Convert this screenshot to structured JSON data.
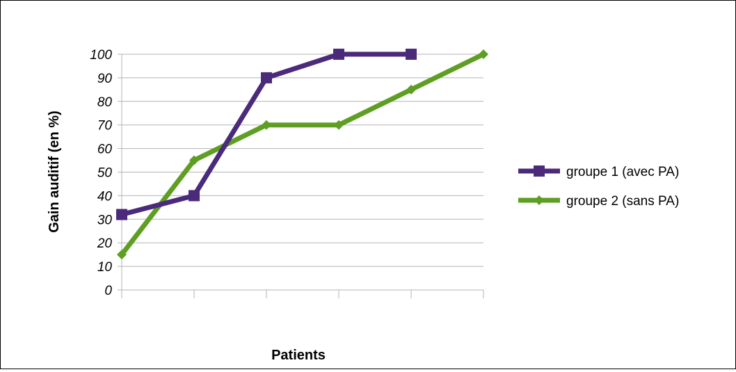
{
  "chart_data": {
    "type": "line",
    "xlabel": "Patients",
    "ylabel": "Gain auditif (en %)",
    "ylim": [
      0,
      100
    ],
    "y_ticks": [
      "0",
      "10",
      "20",
      "30",
      "40",
      "50",
      "60",
      "70",
      "80",
      "90",
      "100"
    ],
    "grid": "horizontal",
    "legend_position": "right",
    "series": [
      {
        "name": "groupe 1 (avec PA)",
        "color": "#4b2a7b",
        "marker": "square",
        "values": [
          32,
          40,
          90,
          100,
          100
        ]
      },
      {
        "name": "groupe 2 (sans PA)",
        "color": "#5e9e22",
        "marker": "diamond",
        "values": [
          15,
          55,
          70,
          70,
          85,
          100
        ]
      }
    ]
  }
}
